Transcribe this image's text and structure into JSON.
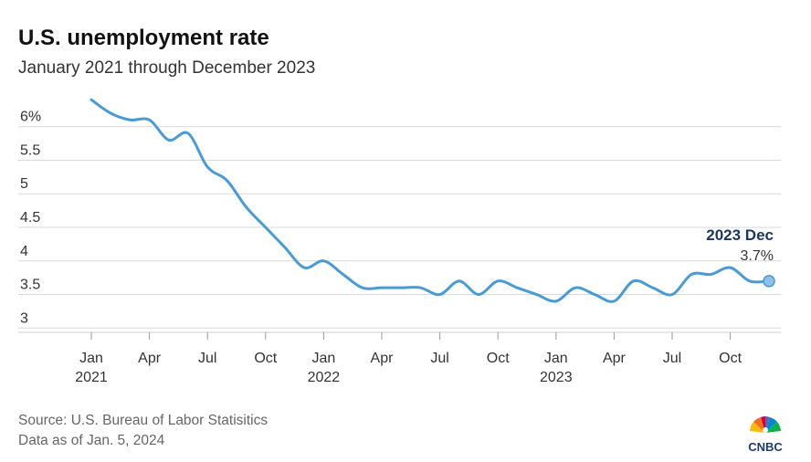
{
  "title": "U.S. unemployment rate",
  "subtitle": "January 2021 through December 2023",
  "source": "Source: U.S. Bureau of Labor Statisitics",
  "data_as_of": "Data as of Jan. 5, 2024",
  "logo_text": "CNBC",
  "colors": {
    "line": "#4a9ad4",
    "grid": "#d9d9d9",
    "label_accent": "#1a3763"
  },
  "chart_data": {
    "type": "line",
    "title": "U.S. unemployment rate",
    "subtitle": "January 2021 through December 2023",
    "xlabel": "",
    "ylabel": "",
    "ylim": [
      3,
      6
    ],
    "yticks": [
      3,
      3.5,
      4,
      4.5,
      5,
      5.5,
      6
    ],
    "ytick_labels": [
      "3",
      "3.5",
      "4",
      "4.5",
      "5",
      "5.5",
      "6%"
    ],
    "xticks": [
      {
        "index": 0,
        "line1": "Jan",
        "line2": "2021"
      },
      {
        "index": 3,
        "line1": "Apr",
        "line2": ""
      },
      {
        "index": 6,
        "line1": "Jul",
        "line2": ""
      },
      {
        "index": 9,
        "line1": "Oct",
        "line2": ""
      },
      {
        "index": 12,
        "line1": "Jan",
        "line2": "2022"
      },
      {
        "index": 15,
        "line1": "Apr",
        "line2": ""
      },
      {
        "index": 18,
        "line1": "Jul",
        "line2": ""
      },
      {
        "index": 21,
        "line1": "Oct",
        "line2": ""
      },
      {
        "index": 24,
        "line1": "Jan",
        "line2": "2023"
      },
      {
        "index": 27,
        "line1": "Apr",
        "line2": ""
      },
      {
        "index": 30,
        "line1": "Jul",
        "line2": ""
      },
      {
        "index": 33,
        "line1": "Oct",
        "line2": ""
      }
    ],
    "x": [
      "2021-01",
      "2021-02",
      "2021-03",
      "2021-04",
      "2021-05",
      "2021-06",
      "2021-07",
      "2021-08",
      "2021-09",
      "2021-10",
      "2021-11",
      "2021-12",
      "2022-01",
      "2022-02",
      "2022-03",
      "2022-04",
      "2022-05",
      "2022-06",
      "2022-07",
      "2022-08",
      "2022-09",
      "2022-10",
      "2022-11",
      "2022-12",
      "2023-01",
      "2023-02",
      "2023-03",
      "2023-04",
      "2023-05",
      "2023-06",
      "2023-07",
      "2023-08",
      "2023-09",
      "2023-10",
      "2023-11",
      "2023-12"
    ],
    "series": [
      {
        "values": [
          6.4,
          6.2,
          6.1,
          6.1,
          5.8,
          5.9,
          5.4,
          5.2,
          4.8,
          4.5,
          4.2,
          3.9,
          4.0,
          3.8,
          3.6,
          3.6,
          3.6,
          3.6,
          3.5,
          3.7,
          3.5,
          3.7,
          3.6,
          3.5,
          3.4,
          3.6,
          3.5,
          3.4,
          3.7,
          3.6,
          3.5,
          3.8,
          3.8,
          3.9,
          3.7,
          3.7
        ]
      }
    ],
    "annotation": {
      "index": 35,
      "label": "2023 Dec",
      "value_text": "3.7%"
    },
    "grid": true,
    "legend": "none"
  }
}
